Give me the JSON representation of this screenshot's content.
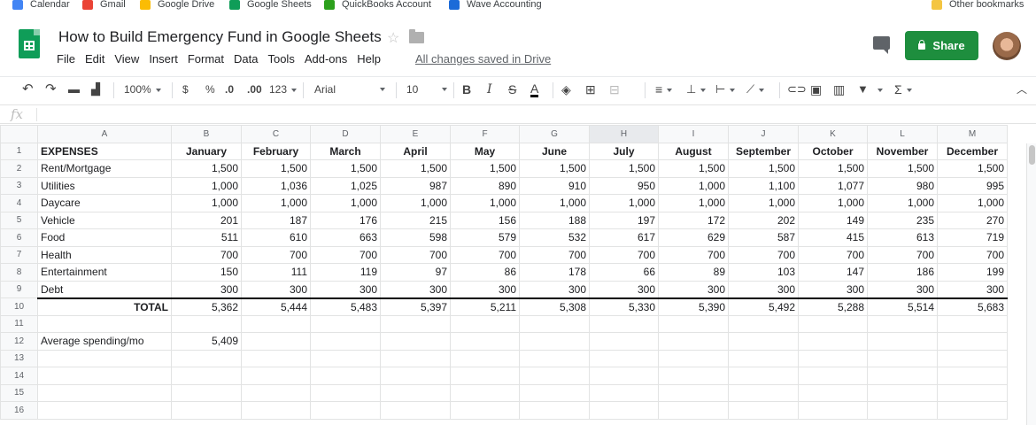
{
  "bookmarks": [
    {
      "label": "Calendar",
      "icon": "calendar-icon",
      "color": "#4285f4",
      "x": 14
    },
    {
      "label": "Gmail",
      "icon": "gmail-icon",
      "color": "#ea4335",
      "x": 93
    },
    {
      "label": "Google Drive",
      "icon": "drive-icon",
      "color": "#fbbc04",
      "x": 158
    },
    {
      "label": "Google Sheets",
      "icon": "sheets-icon",
      "color": "#0f9d58",
      "x": 259
    },
    {
      "label": "QuickBooks Account",
      "icon": "quickbooks-icon",
      "color": "#2ca01c",
      "x": 366
    },
    {
      "label": "Wave Accounting",
      "icon": "wave-icon",
      "color": "#1c6bd8",
      "x": 507
    },
    {
      "label": "Other bookmarks",
      "icon": "folder-icon",
      "color": "#f4c542",
      "x": 1052
    }
  ],
  "document": {
    "title": "How to Build Emergency Fund in Google Sheets",
    "saved_status": "All changes saved in Drive"
  },
  "menu": [
    "File",
    "Edit",
    "View",
    "Insert",
    "Format",
    "Data",
    "Tools",
    "Add-ons",
    "Help"
  ],
  "share": {
    "label": "Share"
  },
  "toolbar": {
    "zoom": "100%",
    "currency": "$",
    "percent": "%",
    "decrease_decimal": ".0",
    "increase_decimal": ".00",
    "number_format": "123",
    "font": "Arial",
    "font_size": "10",
    "bold": "B",
    "italic": "I",
    "strike": "S",
    "text_color": "A",
    "function": "Σ"
  },
  "formula": {
    "fx": "fx"
  },
  "columns": [
    "A",
    "B",
    "C",
    "D",
    "E",
    "F",
    "G",
    "H",
    "I",
    "J",
    "K",
    "L",
    "M"
  ],
  "selected_column": "H",
  "sheet": {
    "header": [
      "EXPENSES",
      "January",
      "February",
      "March",
      "April",
      "May",
      "June",
      "July",
      "August",
      "September",
      "October",
      "November",
      "December"
    ],
    "rows": [
      [
        "Rent/Mortgage",
        "1,500",
        "1,500",
        "1,500",
        "1,500",
        "1,500",
        "1,500",
        "1,500",
        "1,500",
        "1,500",
        "1,500",
        "1,500",
        "1,500"
      ],
      [
        "Utilities",
        "1,000",
        "1,036",
        "1,025",
        "987",
        "890",
        "910",
        "950",
        "1,000",
        "1,100",
        "1,077",
        "980",
        "995"
      ],
      [
        "Daycare",
        "1,000",
        "1,000",
        "1,000",
        "1,000",
        "1,000",
        "1,000",
        "1,000",
        "1,000",
        "1,000",
        "1,000",
        "1,000",
        "1,000"
      ],
      [
        "Vehicle",
        "201",
        "187",
        "176",
        "215",
        "156",
        "188",
        "197",
        "172",
        "202",
        "149",
        "235",
        "270"
      ],
      [
        "Food",
        "511",
        "610",
        "663",
        "598",
        "579",
        "532",
        "617",
        "629",
        "587",
        "415",
        "613",
        "719"
      ],
      [
        "Health",
        "700",
        "700",
        "700",
        "700",
        "700",
        "700",
        "700",
        "700",
        "700",
        "700",
        "700",
        "700"
      ],
      [
        "Entertainment",
        "150",
        "111",
        "119",
        "97",
        "86",
        "178",
        "66",
        "89",
        "103",
        "147",
        "186",
        "199"
      ],
      [
        "Debt",
        "300",
        "300",
        "300",
        "300",
        "300",
        "300",
        "300",
        "300",
        "300",
        "300",
        "300",
        "300"
      ]
    ],
    "total_label": "TOTAL",
    "totals": [
      "5,362",
      "5,444",
      "5,483",
      "5,397",
      "5,211",
      "5,308",
      "5,330",
      "5,390",
      "5,492",
      "5,288",
      "5,514",
      "5,683"
    ],
    "average_label": "Average spending/mo",
    "average_value": "5,409"
  }
}
